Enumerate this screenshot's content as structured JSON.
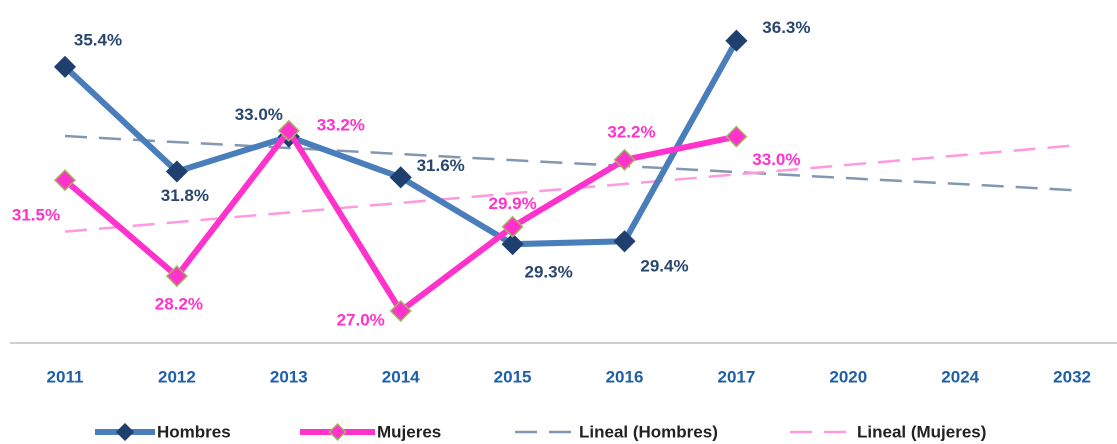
{
  "chart_data": {
    "type": "line",
    "categories": [
      "2011",
      "2012",
      "2013",
      "2014",
      "2015",
      "2016",
      "2017",
      "2020",
      "2024",
      "2032"
    ],
    "ylim": [
      25.9,
      37.7
    ],
    "legend": "bottom",
    "series": [
      {
        "name": "Hombres",
        "color": "#4a7ebb",
        "marker_color": "#1f3f6e",
        "label_color": "#2a4670",
        "style": "solid",
        "values": [
          35.4,
          31.8,
          33.0,
          31.6,
          29.3,
          29.4,
          36.3,
          null,
          null,
          null
        ],
        "value_labels": [
          "35.4%",
          "31.8%",
          "33.0%",
          "31.6%",
          "29.3%",
          "29.4%",
          "36.3%",
          null,
          null,
          null
        ]
      },
      {
        "name": "Mujeres",
        "color": "#ff33cc",
        "marker_color": "#ff33cc",
        "marker_edge": "#9bbb59",
        "label_color": "#ff33cc",
        "style": "solid",
        "values": [
          31.5,
          28.2,
          33.2,
          27.0,
          29.9,
          32.2,
          33.0,
          null,
          null,
          null
        ],
        "value_labels": [
          "31.5%",
          "28.2%",
          "33.2%",
          "27.0%",
          "29.9%",
          "32.2%",
          "33.0%",
          null,
          null,
          null
        ]
      },
      {
        "name": "Lineal (Hombres)",
        "color": "#8497b0",
        "style": "dashed",
        "values": [
          33.02,
          32.81,
          32.61,
          32.4,
          32.19,
          31.99,
          31.78,
          31.57,
          31.37,
          31.16
        ]
      },
      {
        "name": "Lineal (Mujeres)",
        "color": "#ff99e0",
        "style": "dashed",
        "values": [
          29.73,
          30.06,
          30.39,
          30.72,
          31.05,
          31.37,
          31.7,
          32.03,
          32.36,
          32.69
        ]
      }
    ]
  }
}
